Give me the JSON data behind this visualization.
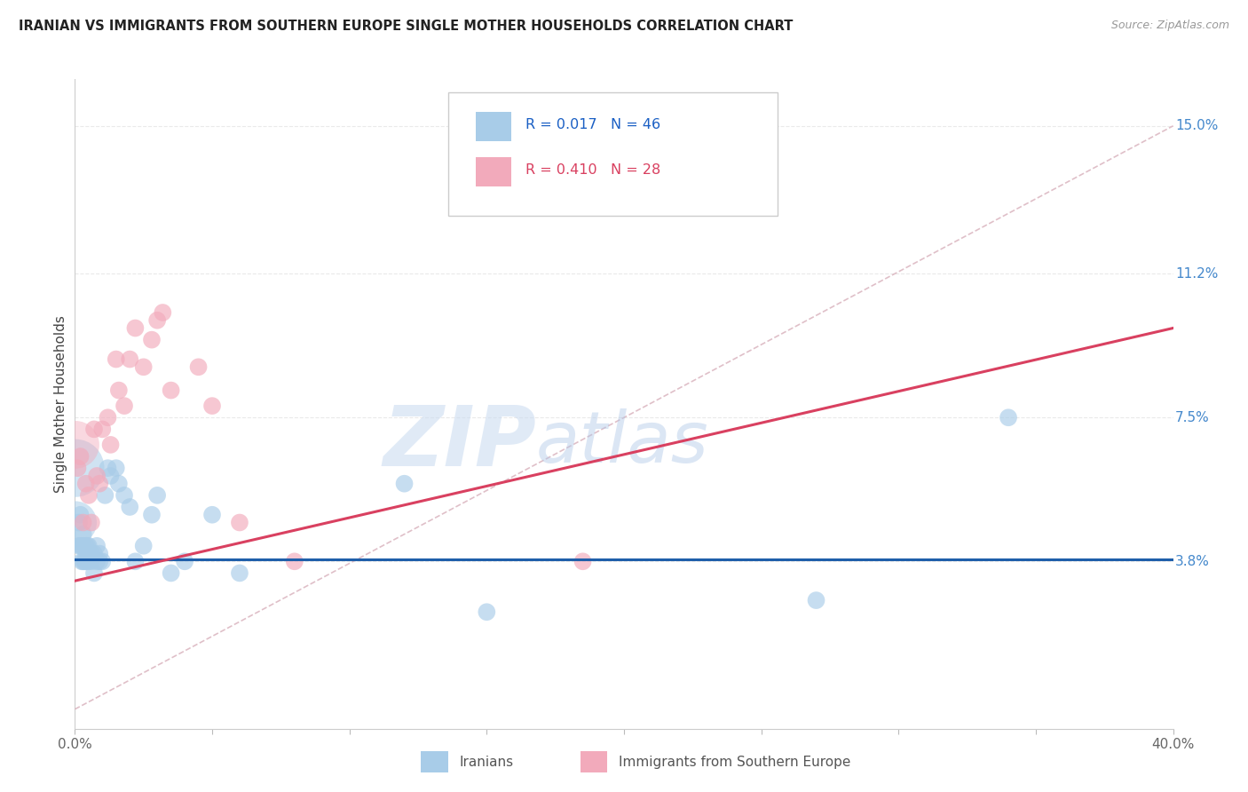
{
  "title": "IRANIAN VS IMMIGRANTS FROM SOUTHERN EUROPE SINGLE MOTHER HOUSEHOLDS CORRELATION CHART",
  "source": "Source: ZipAtlas.com",
  "ylabel": "Single Mother Households",
  "xlim": [
    0.0,
    0.4
  ],
  "ylim": [
    -0.005,
    0.162
  ],
  "yticks_right": [
    0.038,
    0.075,
    0.112,
    0.15
  ],
  "ytick_labels_right": [
    "3.8%",
    "7.5%",
    "11.2%",
    "15.0%"
  ],
  "color_iranian": "#a8cce8",
  "color_southern": "#f2aabb",
  "color_line_iranian": "#1f5faa",
  "color_line_southern": "#d94060",
  "color_diag": "#d8b0bb",
  "watermark_zip": "ZIP",
  "watermark_atlas": "atlas",
  "iranians_x": [
    0.0008,
    0.001,
    0.0015,
    0.0015,
    0.002,
    0.002,
    0.0025,
    0.0025,
    0.003,
    0.003,
    0.003,
    0.0035,
    0.004,
    0.004,
    0.0045,
    0.005,
    0.005,
    0.005,
    0.006,
    0.006,
    0.007,
    0.007,
    0.008,
    0.008,
    0.009,
    0.009,
    0.01,
    0.011,
    0.012,
    0.013,
    0.015,
    0.016,
    0.018,
    0.02,
    0.022,
    0.025,
    0.028,
    0.03,
    0.035,
    0.04,
    0.05,
    0.06,
    0.12,
    0.15,
    0.27,
    0.34
  ],
  "iranians_y": [
    0.062,
    0.048,
    0.048,
    0.042,
    0.05,
    0.042,
    0.042,
    0.038,
    0.045,
    0.038,
    0.042,
    0.038,
    0.042,
    0.038,
    0.042,
    0.04,
    0.042,
    0.038,
    0.04,
    0.038,
    0.035,
    0.04,
    0.038,
    0.042,
    0.038,
    0.04,
    0.038,
    0.055,
    0.062,
    0.06,
    0.062,
    0.058,
    0.055,
    0.052,
    0.038,
    0.042,
    0.05,
    0.055,
    0.035,
    0.038,
    0.05,
    0.035,
    0.058,
    0.025,
    0.028,
    0.075
  ],
  "southern_x": [
    0.0008,
    0.001,
    0.002,
    0.003,
    0.004,
    0.005,
    0.006,
    0.007,
    0.008,
    0.009,
    0.01,
    0.012,
    0.013,
    0.015,
    0.016,
    0.018,
    0.02,
    0.022,
    0.025,
    0.028,
    0.03,
    0.032,
    0.035,
    0.045,
    0.05,
    0.06,
    0.08,
    0.185
  ],
  "southern_y": [
    0.068,
    0.062,
    0.065,
    0.048,
    0.058,
    0.055,
    0.048,
    0.072,
    0.06,
    0.058,
    0.072,
    0.075,
    0.068,
    0.09,
    0.082,
    0.078,
    0.09,
    0.098,
    0.088,
    0.095,
    0.1,
    0.102,
    0.082,
    0.088,
    0.078,
    0.048,
    0.038,
    0.038
  ],
  "iranian_line_x": [
    0.0,
    0.4
  ],
  "iranian_line_y": [
    0.0385,
    0.0385
  ],
  "southern_line_x": [
    0.0,
    0.4
  ],
  "southern_line_y": [
    0.033,
    0.098
  ],
  "diag_line_x": [
    0.0,
    0.4
  ],
  "diag_line_y": [
    0.0,
    0.15
  ],
  "background_color": "#ffffff",
  "grid_color": "#e8e8e8"
}
